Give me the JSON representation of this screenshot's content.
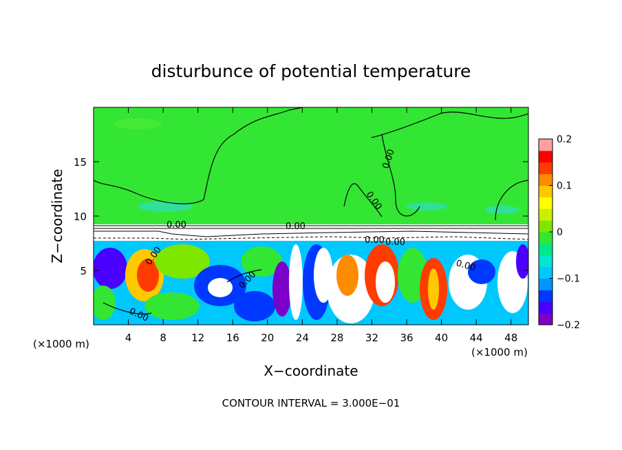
{
  "chart_data": {
    "type": "heatmap",
    "title": "disturbunce of potential temperature",
    "xlabel": "X−coordinate",
    "ylabel": "Z−coordinate",
    "x_unit": "(×1000 m)",
    "xlim": [
      0,
      50
    ],
    "ylim": [
      0,
      20
    ],
    "xticks": [
      4,
      8,
      12,
      16,
      20,
      24,
      28,
      32,
      36,
      40,
      44,
      48
    ],
    "yticks": [
      5,
      10,
      15
    ],
    "colorbar": {
      "range": [
        -0.2,
        0.2
      ],
      "tick_values": [
        0.2,
        0.1,
        0,
        -0.1,
        -0.2
      ],
      "tick_labels": [
        "0.2",
        "0.1",
        "0",
        "−0.1",
        "−0.2"
      ],
      "colors": [
        "#7b00c8",
        "#4a00ff",
        "#0038ff",
        "#0096ff",
        "#00c8ff",
        "#00e6d2",
        "#00e88c",
        "#33e633",
        "#7fe600",
        "#c8f000",
        "#ffff00",
        "#ffc800",
        "#ff8c00",
        "#ff3c00",
        "#ff0000",
        "#ffa0a0"
      ]
    },
    "background_field_value": 0.0,
    "stable_layer_z": [
      8,
      9
    ],
    "contour_labels": [
      "0.00",
      "0.00",
      "0.00",
      "0.00",
      "0.00",
      "0.00",
      "0.00",
      "0.00",
      "0.00",
      "0.00"
    ],
    "footer": "CONTOUR INTERVAL = 3.000E−01"
  }
}
